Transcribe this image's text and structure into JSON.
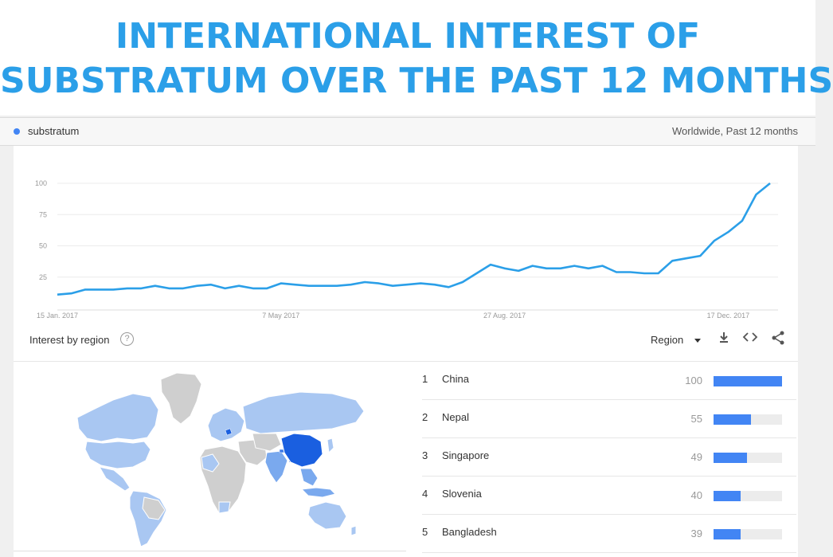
{
  "banner": {
    "line1": "INTERNATIONAL INTEREST OF",
    "line2": "SUBSTRATUM OVER THE PAST 12 MONTHS"
  },
  "term": {
    "name": "substratum",
    "scope": "Worldwide, Past 12 months",
    "color": "#4285f4"
  },
  "chart_data": {
    "type": "line",
    "title": "",
    "xlabel": "",
    "ylabel": "",
    "ylim": [
      0,
      100
    ],
    "y_ticks": [
      25,
      50,
      75,
      100
    ],
    "x_tick_labels": [
      {
        "label": "15 Jan. 2017",
        "index": 0
      },
      {
        "label": "7 May 2017",
        "index": 16
      },
      {
        "label": "27 Aug. 2017",
        "index": 32
      },
      {
        "label": "17 Dec. 2017",
        "index": 48
      }
    ],
    "grid": true,
    "series": [
      {
        "name": "substratum",
        "color": "#2b9fe8",
        "values": [
          11,
          12,
          15,
          15,
          15,
          16,
          16,
          18,
          16,
          16,
          18,
          19,
          16,
          18,
          16,
          16,
          20,
          19,
          18,
          18,
          18,
          19,
          21,
          20,
          18,
          19,
          20,
          19,
          17,
          21,
          28,
          35,
          32,
          30,
          34,
          32,
          32,
          34,
          32,
          34,
          29,
          29,
          28,
          28,
          38,
          40,
          42,
          54,
          61,
          70,
          91,
          100
        ]
      }
    ]
  },
  "interest_by_region": {
    "title": "Interest by region",
    "help": "?",
    "region_label": "Region",
    "rows": [
      {
        "rank": "1",
        "name": "China",
        "value": 100
      },
      {
        "rank": "2",
        "name": "Nepal",
        "value": 55
      },
      {
        "rank": "3",
        "name": "Singapore",
        "value": 49
      },
      {
        "rank": "4",
        "name": "Slovenia",
        "value": 40
      },
      {
        "rank": "5",
        "name": "Bangladesh",
        "value": 39
      }
    ]
  },
  "icons": {
    "download": "download-icon",
    "embed": "embed-icon",
    "share": "share-icon"
  },
  "map_colors": {
    "no_data": "#cfcfcf",
    "low": "#a9c7f2",
    "mid": "#7aa9ee",
    "high": "#1a5fe0"
  }
}
